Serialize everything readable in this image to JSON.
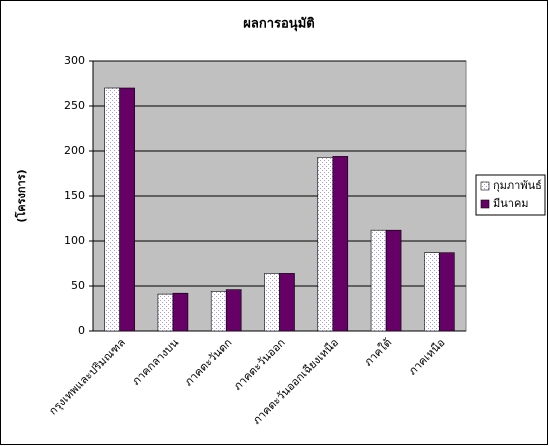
{
  "chart_data": {
    "type": "bar",
    "title": "ผลการอนุมัติ",
    "y_label": "(โครงการ)",
    "categories": [
      "กรุงเทพและปริมณฑล",
      "ภาคกลางบน",
      "ภาคตะวันตก",
      "ภาคตะวันออก",
      "ภาคตะวันออกเฉียงเหนือ",
      "ภาคใต้",
      "ภาคเหนือ"
    ],
    "series": [
      {
        "name": "กุมภาพันธ์",
        "color": "#9999ff",
        "values": [
          270,
          41,
          44,
          64,
          193,
          112,
          87
        ]
      },
      {
        "name": "มีนาคม",
        "color": "#660066",
        "values": [
          270,
          42,
          46,
          64,
          194,
          112,
          87
        ]
      }
    ],
    "ylim": [
      0,
      300
    ],
    "yticks": [
      0,
      50,
      100,
      150,
      200,
      250,
      300
    ],
    "grid": true,
    "legend": "right"
  }
}
